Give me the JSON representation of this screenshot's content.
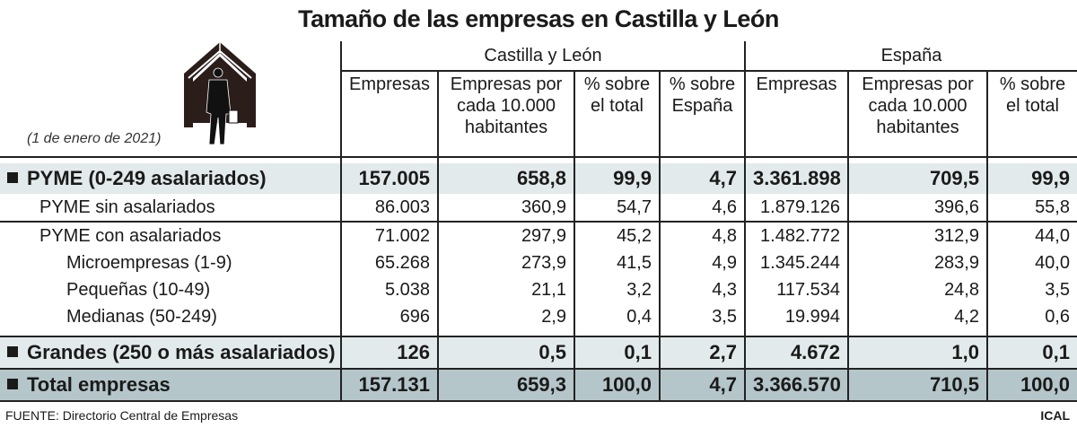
{
  "title": "Tamaño de las empresas en Castilla y León",
  "date_note": "(1 de enero de 2021)",
  "source": "FUENTE: Directorio Central de Empresas",
  "brand": "ICAL",
  "chart_data": {
    "type": "table",
    "title": "Tamaño de las empresas en Castilla y León",
    "groups": [
      "Castilla y León",
      "España"
    ],
    "columns": [
      "Empresas",
      "Empresas por cada 10.000 habitantes",
      "% sobre el total",
      "% sobre España",
      "Empresas",
      "Empresas por cada 10.000 habitantes",
      "% sobre el total"
    ],
    "rows": [
      {
        "label": "PYME (0-249 asalariados)",
        "values": [
          "157.005",
          "658,8",
          "99,9",
          "4,7",
          "3.361.898",
          "709,5",
          "99,9"
        ]
      },
      {
        "label": "PYME sin asalariados",
        "values": [
          "86.003",
          "360,9",
          "54,7",
          "4,6",
          "1.879.126",
          "396,6",
          "55,8"
        ]
      },
      {
        "label": "PYME con asalariados",
        "values": [
          "71.002",
          "297,9",
          "45,2",
          "4,8",
          "1.482.772",
          "312,9",
          "44,0"
        ]
      },
      {
        "label": "Microempresas (1-9)",
        "values": [
          "65.268",
          "273,9",
          "41,5",
          "4,9",
          "1.345.244",
          "283,9",
          "40,0"
        ]
      },
      {
        "label": "Pequeñas (10-49)",
        "values": [
          "5.038",
          "21,1",
          "3,2",
          "4,3",
          "117.534",
          "24,8",
          "3,5"
        ]
      },
      {
        "label": "Medianas (50-249)",
        "values": [
          "696",
          "2,9",
          "0,4",
          "3,5",
          "19.994",
          "4,2",
          "0,6"
        ]
      },
      {
        "label": "Grandes (250 o más asalariados)",
        "values": [
          "126",
          "0,5",
          "0,1",
          "2,7",
          "4.672",
          "1,0",
          "0,1"
        ]
      },
      {
        "label": "Total empresas",
        "values": [
          "157.131",
          "659,3",
          "100,0",
          "4,7",
          "3.366.570",
          "710,5",
          "100,0"
        ]
      }
    ]
  }
}
